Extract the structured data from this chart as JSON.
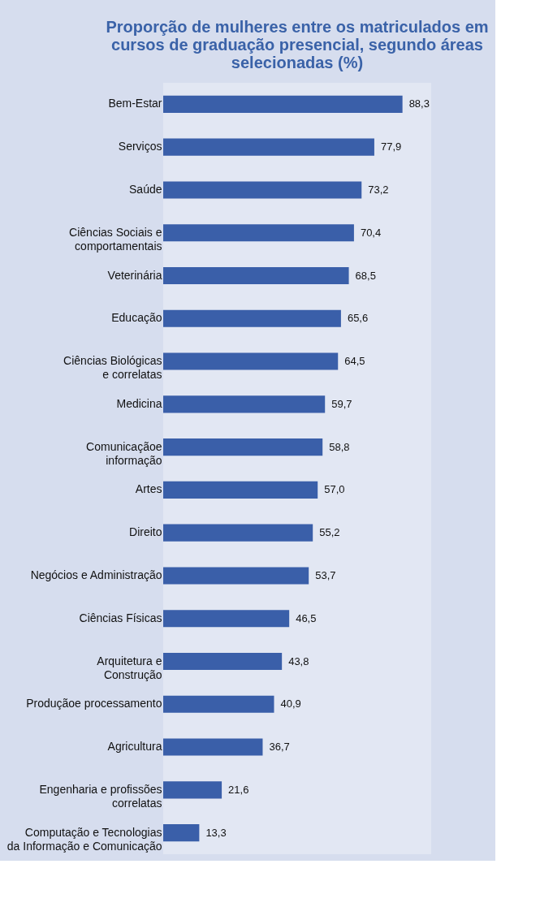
{
  "chart_data": {
    "type": "bar",
    "orientation": "horizontal",
    "title": "Proporção de mulheres entre os matriculados em\ncursos de graduação presencial, segundo áreas\nselecionadas (%)",
    "categories": [
      "Bem-Estar",
      "Serviços",
      "Saúde",
      "Ciências Sociais e\ncomportamentais",
      "Veterinária",
      "Educação",
      "Ciências Biológicas\ne correlatas",
      "Medicina",
      "Comunicaçãoe\ninformação",
      "Artes",
      "Direito",
      "Negócios e Administração",
      "Ciências Físicas",
      "Arquitetura e\nConstrução",
      "Produçãoe processamento",
      "Agricultura",
      "Engenharia e profissões\ncorrelatas",
      "Computação e Tecnologias\nda Informação e Comunicação"
    ],
    "values": [
      88.3,
      77.9,
      73.2,
      70.4,
      68.5,
      65.6,
      64.5,
      59.7,
      58.8,
      57.0,
      55.2,
      53.7,
      46.5,
      43.8,
      40.9,
      36.7,
      21.6,
      13.3
    ],
    "value_labels": [
      "88,3",
      "77,9",
      "73,2",
      "70,4",
      "68,5",
      "65,6",
      "64,5",
      "59,7",
      "58,8",
      "57,0",
      "55,2",
      "53,7",
      "46,5",
      "43,8",
      "40,9",
      "36,7",
      "21,6",
      "13,3"
    ],
    "color": "#3a5fa9"
  }
}
